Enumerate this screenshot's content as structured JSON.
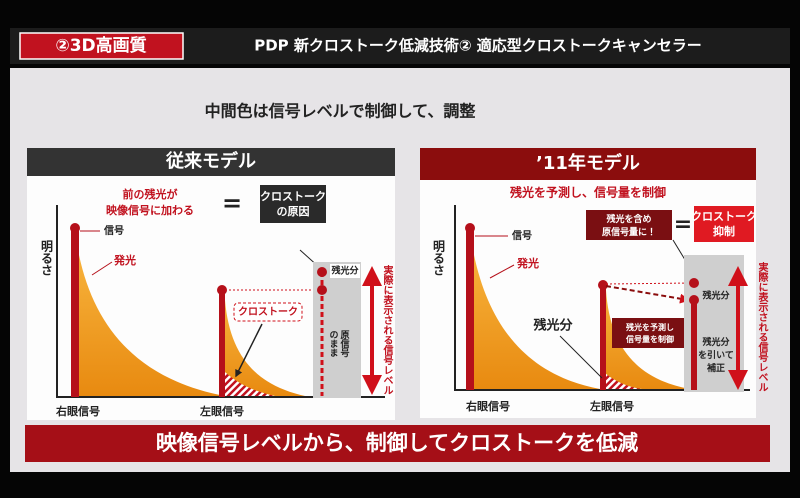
{
  "header": {
    "badge": "②3D高画質",
    "title": "PDP 新クロストーク低減技術② 適応型クロストークキャンセラー"
  },
  "subtitle": "中間色は信号レベルで制御して、調整",
  "panels": [
    {
      "title": "従来モデル",
      "note": [
        "前の残光が",
        "映像信号に加わる"
      ],
      "equals": "=",
      "result": [
        "クロストーク",
        "の原因"
      ],
      "y_label": "明るさ",
      "signal": "信号",
      "emission": "発光",
      "crosstalk": "クロストーク",
      "original": [
        "原信号",
        "のまま"
      ],
      "afterglow": "残光分",
      "actual": "実際に表示される信号レベル",
      "x_labels": [
        "右眼信号",
        "左眼信号"
      ]
    },
    {
      "title": "’11年モデル",
      "note": [
        "残光を予測し、信号量を制御"
      ],
      "equals": "=",
      "condition": [
        "残光を含め",
        "原信号量に！"
      ],
      "result": [
        "クロストーク",
        "抑制"
      ],
      "y_label": "明るさ",
      "signal": "信号",
      "emission": "発光",
      "afterglow_label": "残光分",
      "control": [
        "残光を予測し",
        "信号量を制御"
      ],
      "afterglow": "残光分",
      "correction": [
        "残光分",
        "を引いて",
        "補正"
      ],
      "actual": "実際に表示される信号レベル",
      "x_labels": [
        "右眼信号",
        "左眼信号"
      ]
    }
  ],
  "footer": "映像信号レベルから、制御してクロストークを低減"
}
